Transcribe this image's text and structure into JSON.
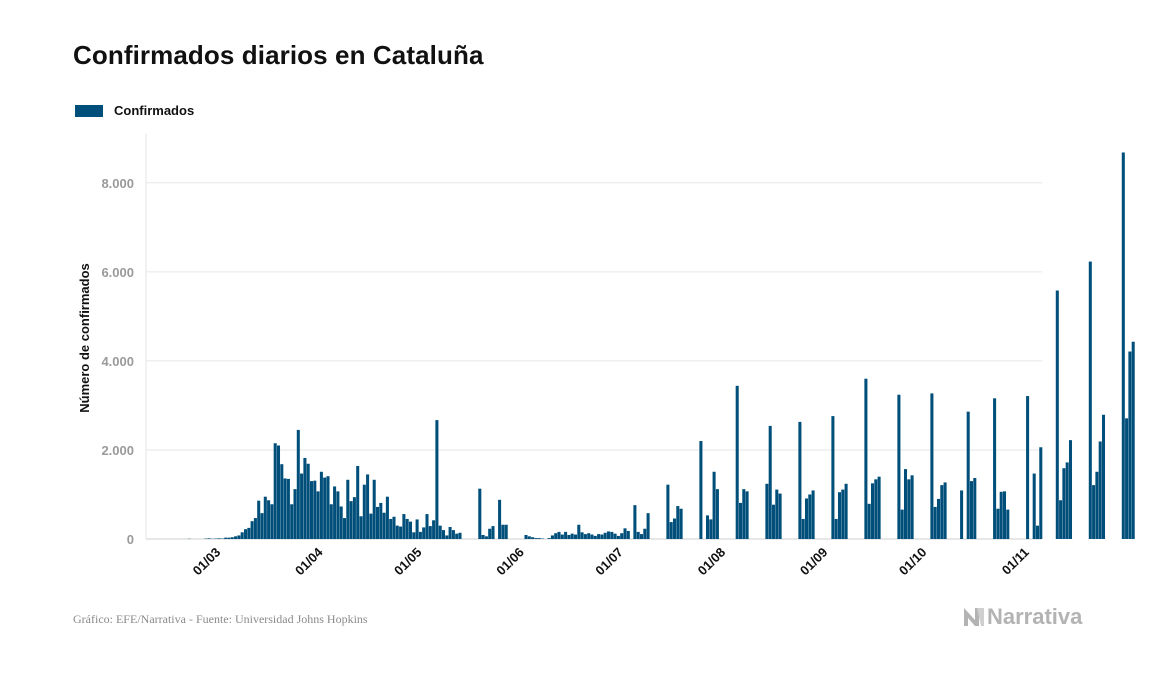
{
  "colors": {
    "bar": "#004f7a",
    "grid": "#e6e6e6",
    "brand": "#b3b3b3"
  },
  "icons": {
    "brand": "narrativa-logo-icon"
  },
  "footer": {
    "source": "Gráfico: EFE/Narrativa - Fuente: Universidad Johns Hopkins",
    "brand": "Narrativa"
  },
  "chart_data": {
    "type": "bar",
    "title": "Confirmados diarios en Cataluña",
    "xlabel": "",
    "ylabel": "Número de confirmados",
    "legend": [
      "Confirmados"
    ],
    "legend_position": "top-left",
    "grid": true,
    "ylim": [
      0,
      9000
    ],
    "yticks": [
      0,
      2000,
      4000,
      6000,
      8000
    ],
    "ytick_labels": [
      "0",
      "2.000",
      "4.000",
      "6.000",
      "8.000"
    ],
    "x_start_day_index": 0,
    "x_start_date": "2020-02-21",
    "xticks": [
      9,
      40,
      70,
      101,
      131,
      162,
      193,
      223,
      254
    ],
    "xtick_labels": [
      "01/03",
      "01/04",
      "01/05",
      "01/06",
      "01/07",
      "01/08",
      "01/09",
      "01/10",
      "01/11"
    ],
    "series": [
      {
        "name": "Confirmados",
        "values": [
          0,
          0,
          0,
          5,
          0,
          0,
          0,
          0,
          10,
          15,
          5,
          10,
          15,
          10,
          30,
          30,
          40,
          60,
          80,
          150,
          220,
          250,
          400,
          470,
          860,
          580,
          950,
          870,
          780,
          2150,
          2100,
          1680,
          1360,
          1350,
          780,
          1120,
          2450,
          1470,
          1820,
          1690,
          1300,
          1310,
          1070,
          1510,
          1380,
          1410,
          780,
          1180,
          1070,
          730,
          470,
          1330,
          850,
          940,
          1640,
          510,
          1220,
          1450,
          570,
          1330,
          720,
          810,
          590,
          950,
          450,
          500,
          300,
          280,
          560,
          450,
          390,
          150,
          440,
          160,
          260,
          560,
          290,
          420,
          2670,
          300,
          200,
          80,
          270,
          200,
          120,
          140,
          0,
          0,
          0,
          0,
          0,
          1130,
          90,
          60,
          230,
          290,
          0,
          880,
          320,
          320,
          0,
          0,
          0,
          0,
          0,
          90,
          60,
          40,
          20,
          20,
          10,
          0,
          20,
          80,
          130,
          160,
          100,
          160,
          90,
          120,
          100,
          320,
          150,
          110,
          130,
          100,
          70,
          110,
          100,
          140,
          170,
          160,
          120,
          70,
          130,
          240,
          180,
          0,
          760,
          160,
          110,
          230,
          580,
          0,
          0,
          0,
          0,
          0,
          1220,
          380,
          460,
          740,
          680,
          0,
          0,
          0,
          0,
          0,
          2200,
          0,
          530,
          440,
          1510,
          1120,
          0,
          0,
          0,
          0,
          0,
          3440,
          810,
          1120,
          1070,
          0,
          0,
          0,
          0,
          0,
          1240,
          2540,
          770,
          1110,
          1020,
          0,
          0,
          0,
          0,
          0,
          2630,
          450,
          910,
          1000,
          1090,
          0,
          0,
          0,
          0,
          0,
          2760,
          450,
          1050,
          1110,
          1240,
          0,
          0,
          0,
          0,
          0,
          3600,
          790,
          1250,
          1340,
          1400,
          0,
          0,
          0,
          0,
          0,
          3240,
          660,
          1570,
          1340,
          1430,
          0,
          0,
          0,
          0,
          0,
          3270,
          720,
          900,
          1210,
          1270,
          0,
          0,
          0,
          0,
          1090,
          0,
          2860,
          1300,
          1370,
          0,
          0,
          0,
          0,
          0,
          3160,
          680,
          1060,
          1070,
          660,
          0,
          0,
          0,
          0,
          0,
          3210,
          0,
          1470,
          300,
          2060,
          0,
          0,
          0,
          0,
          5580,
          870,
          1590,
          1720,
          2220,
          0,
          0,
          0,
          0,
          0,
          6230,
          1210,
          1510,
          2190,
          2790,
          0,
          0,
          0,
          0,
          0,
          8680,
          2710,
          4210,
          4430
        ]
      }
    ]
  }
}
